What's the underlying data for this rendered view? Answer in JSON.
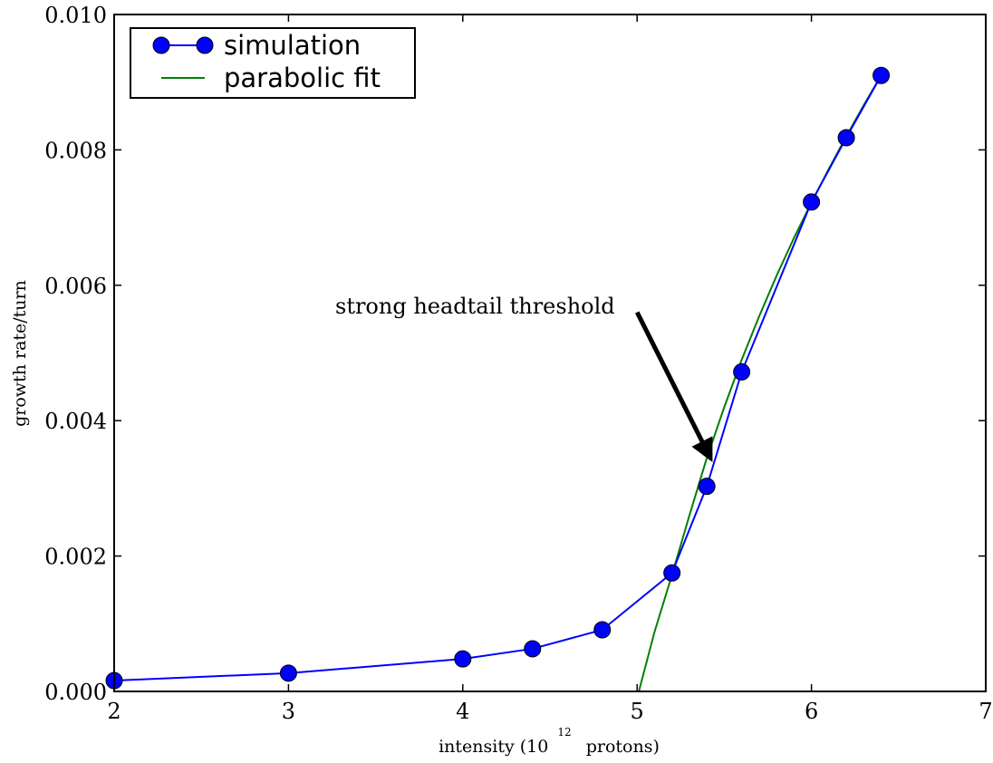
{
  "chart_data": {
    "type": "line",
    "xlabel_prefix": "intensity (10",
    "xlabel_sup": "12",
    "xlabel_suffix": "protons)",
    "ylabel": "growth rate/turn",
    "xlim": [
      2,
      7
    ],
    "ylim": [
      0.0,
      0.01
    ],
    "xticks": [
      2,
      3,
      4,
      5,
      6,
      7
    ],
    "xtick_labels": [
      "2",
      "3",
      "4",
      "5",
      "6",
      "7"
    ],
    "yticks": [
      0.0,
      0.002,
      0.004,
      0.006,
      0.008,
      0.01
    ],
    "ytick_labels": [
      "0.000",
      "0.002",
      "0.004",
      "0.006",
      "0.008",
      "0.010"
    ],
    "grid": false,
    "legend_position": "top-left",
    "series": [
      {
        "name": "simulation",
        "kind": "line+markers",
        "color": "#0000ff",
        "x": [
          2.0,
          3.0,
          4.0,
          4.4,
          4.8,
          5.2,
          5.4,
          5.6,
          6.0,
          6.2,
          6.4
        ],
        "y": [
          0.00016,
          0.00027,
          0.00048,
          0.00063,
          0.00091,
          0.00175,
          0.00303,
          0.00472,
          0.00723,
          0.00818,
          0.0091
        ]
      },
      {
        "name": "parabolic fit",
        "kind": "curve",
        "color": "#008000",
        "x": [
          5.01,
          5.1,
          5.2,
          5.3,
          5.4,
          5.5,
          5.6,
          5.7,
          5.8,
          5.9,
          6.0,
          6.1,
          6.2,
          6.3,
          6.4
        ],
        "y": [
          0.0,
          0.00088,
          0.00172,
          0.0026,
          0.00345,
          0.0042,
          0.0049,
          0.00554,
          0.00614,
          0.0067,
          0.00722,
          0.00772,
          0.0082,
          0.00866,
          0.0091
        ]
      }
    ],
    "annotations": [
      {
        "text": "strong headtail threshold",
        "arrow_to": [
          5.43,
          0.0034
        ],
        "arrow_from": [
          5.0,
          0.0056
        ]
      }
    ]
  }
}
